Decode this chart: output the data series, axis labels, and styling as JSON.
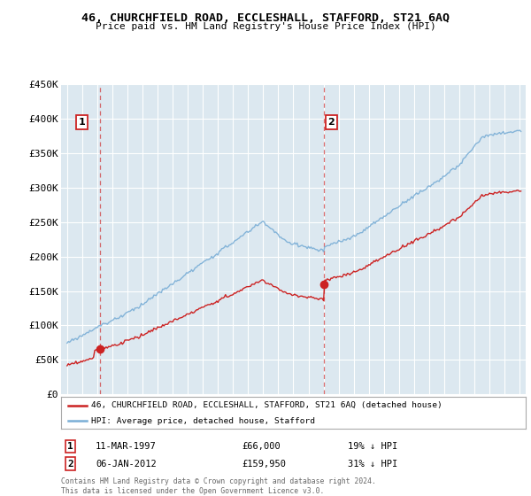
{
  "title": "46, CHURCHFIELD ROAD, ECCLESHALL, STAFFORD, ST21 6AQ",
  "subtitle": "Price paid vs. HM Land Registry's House Price Index (HPI)",
  "legend_line1": "46, CHURCHFIELD ROAD, ECCLESHALL, STAFFORD, ST21 6AQ (detached house)",
  "legend_line2": "HPI: Average price, detached house, Stafford",
  "annotation1_date": "11-MAR-1997",
  "annotation1_price": "£66,000",
  "annotation1_hpi": "19% ↓ HPI",
  "annotation2_date": "06-JAN-2012",
  "annotation2_price": "£159,950",
  "annotation2_hpi": "31% ↓ HPI",
  "footnote1": "Contains HM Land Registry data © Crown copyright and database right 2024.",
  "footnote2": "This data is licensed under the Open Government Licence v3.0.",
  "sale1_year": 1997.19,
  "sale1_price": 66000,
  "sale2_year": 2012.02,
  "sale2_price": 159950,
  "hpi_line_color": "#7aaed6",
  "price_line_color": "#cc2222",
  "plot_bg_color": "#dce8f0",
  "grid_color": "#ffffff",
  "ylim_min": 0,
  "ylim_max": 450000,
  "xlim_min": 1994.6,
  "xlim_max": 2025.4,
  "yticks": [
    0,
    50000,
    100000,
    150000,
    200000,
    250000,
    300000,
    350000,
    400000,
    450000
  ],
  "ytick_labels": [
    "£0",
    "£50K",
    "£100K",
    "£150K",
    "£200K",
    "£250K",
    "£300K",
    "£350K",
    "£400K",
    "£450K"
  ],
  "xticks": [
    1995,
    1996,
    1997,
    1998,
    1999,
    2000,
    2001,
    2002,
    2003,
    2004,
    2005,
    2006,
    2007,
    2008,
    2009,
    2010,
    2011,
    2012,
    2013,
    2014,
    2015,
    2016,
    2017,
    2018,
    2019,
    2020,
    2021,
    2022,
    2023,
    2024,
    2025
  ]
}
